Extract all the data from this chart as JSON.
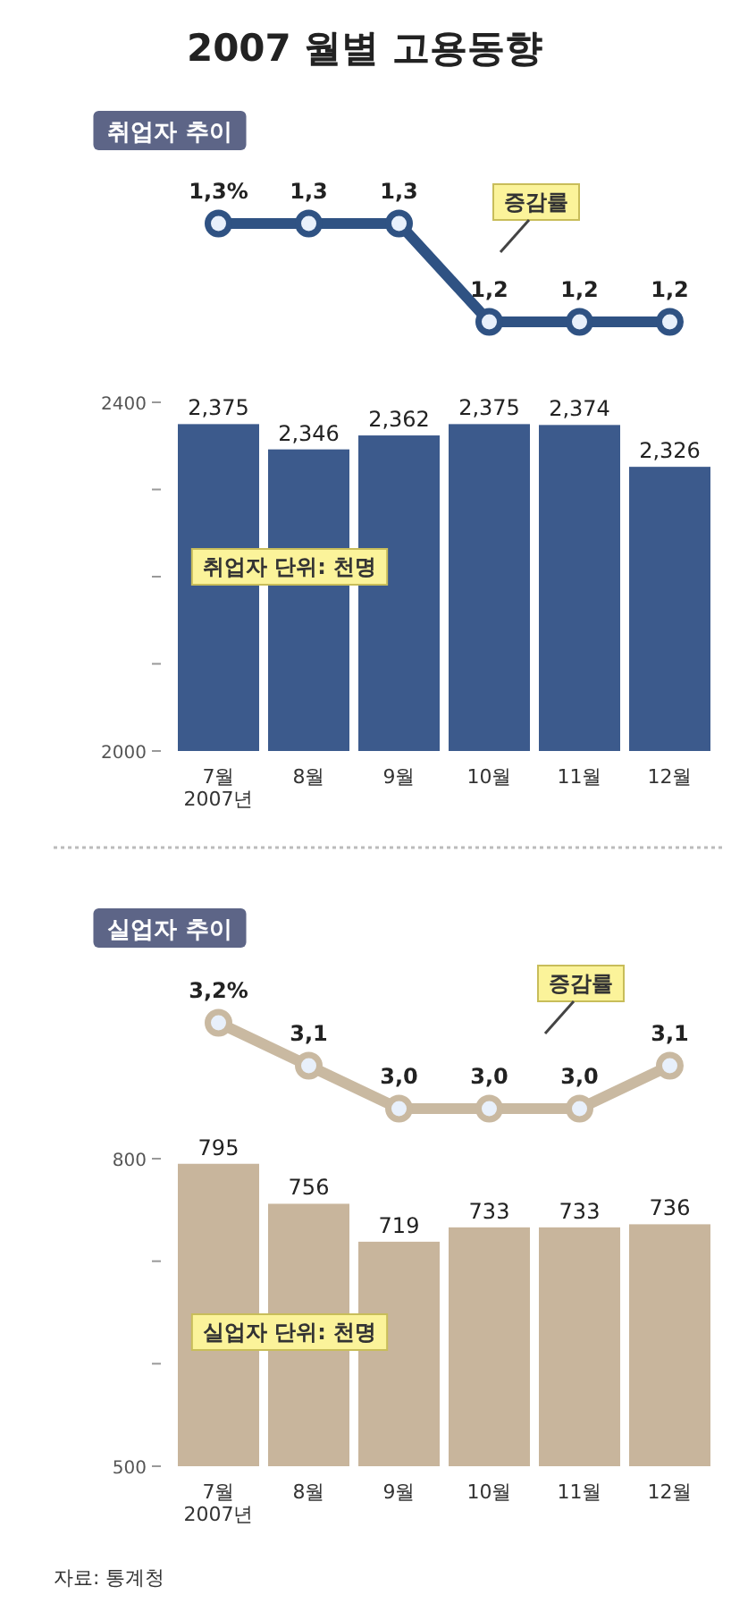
{
  "chart_data": [
    {
      "type": "line",
      "title": "2007 월별 고용동향",
      "subtitle": "취업자 추이",
      "marker": "circle",
      "series": [
        {
          "color": "#2f5283",
          "values": [
            1.3,
            1.3,
            1.3,
            1.2,
            1.2,
            1.2
          ],
          "value_labels": [
            "1,3%",
            "1,3",
            "1,3",
            "1,2",
            "1,2",
            "1,2"
          ]
        }
      ],
      "annotations": [
        "증감률"
      ]
    },
    {
      "type": "bar",
      "categories": [
        "7월\n2007년",
        "8월",
        "9월",
        "10월",
        "11월",
        "12월"
      ],
      "color": "#3c5a8c",
      "values": [
        2375,
        2346,
        2362,
        2375,
        2374,
        2326
      ],
      "value_labels": [
        "2,375",
        "2,346",
        "2,362",
        "2,375",
        "2,374",
        "2,326"
      ],
      "ylim": [
        2000,
        2400
      ],
      "yticks": [
        2000,
        {
          "value": 2100,
          "label": null
        },
        {
          "value": 2200,
          "label": null
        },
        {
          "value": 2300,
          "label": null
        },
        2400
      ],
      "annotations": [
        "취업자 단위: 천명"
      ]
    },
    {
      "type": "line",
      "subtitle": "실업자 추이",
      "marker": "circle",
      "series": [
        {
          "color": "#c9b9a1",
          "values": [
            3.2,
            3.1,
            3.0,
            3.0,
            3.0,
            3.1
          ],
          "value_labels": [
            "3,2%",
            "3,1",
            "3,0",
            "3,0",
            "3,0",
            "3,1"
          ]
        }
      ],
      "annotations": [
        "증감률"
      ]
    },
    {
      "type": "bar",
      "categories": [
        "7월\n2007년",
        "8월",
        "9월",
        "10월",
        "11월",
        "12월"
      ],
      "color": "#c8b59c",
      "values": [
        795,
        756,
        719,
        733,
        733,
        736
      ],
      "value_labels": [
        "795",
        "756",
        "719",
        "733",
        "733",
        "736"
      ],
      "ylim": [
        500,
        800
      ],
      "yticks": [
        500,
        {
          "value": 600,
          "label": null
        },
        {
          "value": 700,
          "label": null
        },
        800
      ],
      "annotations": [
        "실업자 단위: 천명",
        "자료: 통계청"
      ]
    }
  ]
}
